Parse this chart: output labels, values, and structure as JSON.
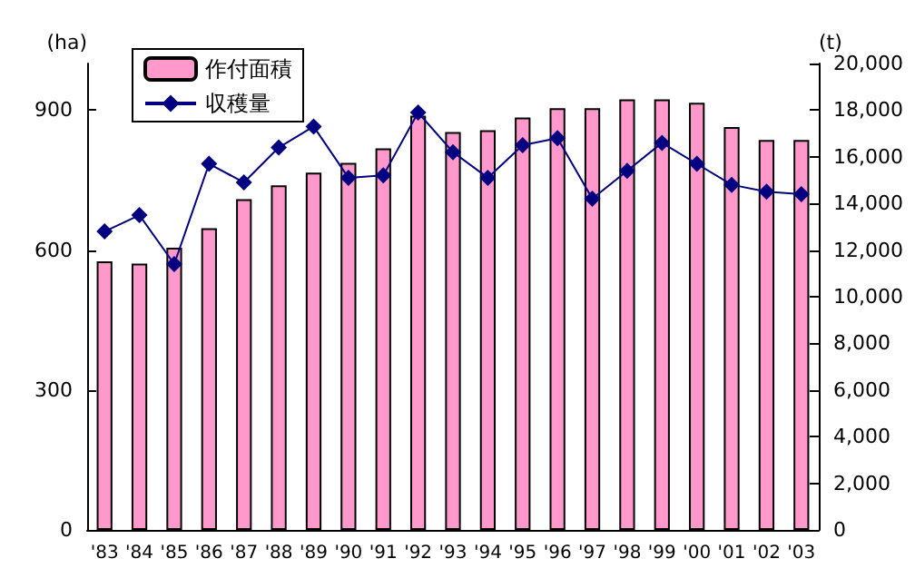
{
  "chart_data": {
    "type": "bar",
    "categories": [
      "'83",
      "'84",
      "'85",
      "'86",
      "'87",
      "'88",
      "'89",
      "'90",
      "'91",
      "'92",
      "'93",
      "'94",
      "'95",
      "'96",
      "'97",
      "'98",
      "'99",
      "'00",
      "'01",
      "'02",
      "'03"
    ],
    "ylabel": "(ha)",
    "y2label": "(t)",
    "ylim": [
      0,
      1000
    ],
    "yticks": [
      0,
      300,
      600,
      900
    ],
    "y2lim": [
      0,
      20000
    ],
    "y2ticks": [
      0,
      {
        "value": 2000,
        "label": "2,000"
      },
      {
        "value": 4000,
        "label": "4,000"
      },
      {
        "value": 6000,
        "label": "6,000"
      },
      {
        "value": 8000,
        "label": "8,000"
      },
      {
        "value": 10000,
        "label": "10,000"
      },
      {
        "value": 12000,
        "label": "12,000"
      },
      {
        "value": 14000,
        "label": "14,000"
      },
      {
        "value": 16000,
        "label": "16,000"
      },
      {
        "value": 18000,
        "label": "18,000"
      },
      {
        "value": 20000,
        "label": "20,000"
      }
    ],
    "series": [
      {
        "name": "作付面積",
        "color": "#ff99cc",
        "values": [
          576,
          571,
          605,
          647,
          709,
          739,
          766,
          787,
          818,
          888,
          853,
          857,
          884,
          904,
          904,
          923,
          923,
          916,
          864,
          836,
          836
        ]
      },
      {
        "name": "収穫量",
        "type": "line",
        "axis": "y2",
        "color": "#000080",
        "marker": "diamond",
        "values": [
          12800,
          13500,
          11400,
          15700,
          14900,
          16400,
          17300,
          15100,
          15200,
          17900,
          16200,
          15100,
          16500,
          16800,
          14200,
          15400,
          16600,
          15700,
          14800,
          14500,
          14400
        ]
      }
    ],
    "legend": "top left",
    "grid": false
  }
}
